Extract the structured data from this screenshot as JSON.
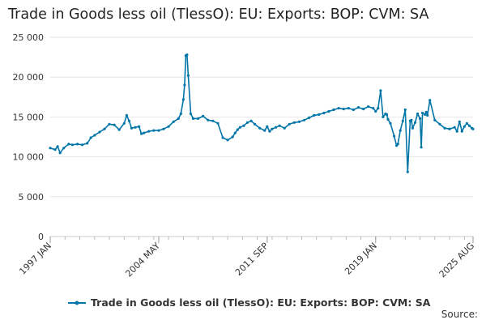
{
  "title": "Trade in Goods less oil (TlessO): EU: Exports: BOP: CVM: SA",
  "source_label": "Source:",
  "colors": {
    "series": "#0075a8",
    "grid": "#e6e6e6",
    "axis": "#666666",
    "text": "#333333"
  },
  "chart_data": {
    "type": "line",
    "title": "Trade in Goods less oil (TlessO): EU: Exports: BOP: CVM: SA",
    "xlabel": "",
    "ylabel": "",
    "ylim": [
      0,
      25000
    ],
    "yticks": [
      0,
      5000,
      10000,
      15000,
      20000,
      25000
    ],
    "ytick_labels": [
      "0",
      "5 000",
      "10 000",
      "15 000",
      "20 000",
      "25 000"
    ],
    "xlim": [
      "1997 JAN",
      "2025 AUG"
    ],
    "xtick_labels": [
      {
        "label": "1997 JAN",
        "month_index": 0
      },
      {
        "label": "2004 MAY",
        "month_index": 88
      },
      {
        "label": "2011 SEP",
        "month_index": 176
      },
      {
        "label": "2019 JAN",
        "month_index": 264
      },
      {
        "label": "2025 AUG",
        "month_index": 343
      }
    ],
    "x_unit": "month_index (months since 1997 JAN)",
    "legend": {
      "position": "bottom",
      "entries": [
        "Trade in Goods less oil (TlessO): EU: Exports: BOP: CVM: SA"
      ]
    },
    "series": [
      {
        "name": "Trade in Goods less oil (TlessO): EU: Exports: BOP: CVM: SA",
        "x": [
          0,
          4,
          6,
          8,
          11,
          15,
          18,
          22,
          26,
          30,
          33,
          36,
          40,
          44,
          48,
          52,
          56,
          60,
          62,
          64,
          66,
          69,
          72,
          74,
          76,
          80,
          84,
          88,
          92,
          96,
          100,
          104,
          106,
          108,
          109,
          110,
          111,
          112,
          114,
          116,
          120,
          124,
          128,
          132,
          136,
          140,
          144,
          148,
          150,
          152,
          154,
          157,
          160,
          163,
          166,
          170,
          174,
          176,
          178,
          180,
          183,
          186,
          190,
          194,
          198,
          202,
          206,
          210,
          214,
          218,
          222,
          226,
          230,
          234,
          238,
          242,
          246,
          250,
          254,
          258,
          262,
          264,
          266,
          268,
          270,
          272,
          273,
          274,
          276,
          279,
          281,
          282,
          284,
          286,
          288,
          290,
          292,
          293,
          294,
          296,
          298,
          300,
          301,
          302,
          304,
          305,
          306,
          308,
          312,
          316,
          320,
          324,
          328,
          330,
          332,
          334,
          336,
          338,
          340,
          342,
          343
        ],
        "values": [
          11100,
          10900,
          11300,
          10500,
          11100,
          11600,
          11500,
          11600,
          11500,
          11700,
          12400,
          12700,
          13100,
          13500,
          14100,
          14000,
          13400,
          14200,
          15200,
          14500,
          13600,
          13700,
          13800,
          12900,
          13000,
          13200,
          13300,
          13300,
          13500,
          13800,
          14400,
          14800,
          15400,
          17200,
          19000,
          22700,
          22800,
          20200,
          15400,
          14800,
          14800,
          15100,
          14600,
          14500,
          14200,
          12400,
          12100,
          12500,
          13000,
          13400,
          13700,
          13900,
          14300,
          14500,
          14100,
          13600,
          13300,
          13800,
          13200,
          13500,
          13700,
          13900,
          13600,
          14100,
          14300,
          14400,
          14600,
          14900,
          15200,
          15300,
          15500,
          15700,
          15900,
          16100,
          16000,
          16100,
          15900,
          16200,
          16000,
          16300,
          16100,
          15700,
          16100,
          18300,
          15000,
          15400,
          15300,
          14700,
          14200,
          12600,
          11400,
          11600,
          13300,
          14500,
          15900,
          8100,
          14500,
          14600,
          13600,
          14300,
          15400,
          14800,
          11200,
          15500,
          15300,
          15600,
          15200,
          17100,
          14600,
          14100,
          13600,
          13500,
          13700,
          13200,
          14400,
          13200,
          13800,
          14200,
          13900,
          13600,
          13500
        ]
      }
    ]
  }
}
